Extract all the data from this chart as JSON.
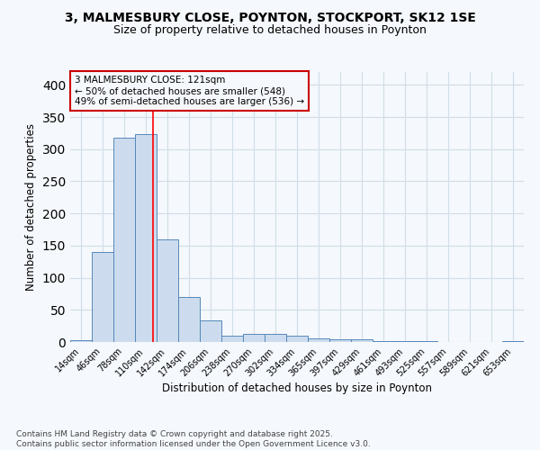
{
  "title": "3, MALMESBURY CLOSE, POYNTON, STOCKPORT, SK12 1SE",
  "subtitle": "Size of property relative to detached houses in Poynton",
  "xlabel": "Distribution of detached houses by size in Poynton",
  "ylabel": "Number of detached properties",
  "bin_labels": [
    "14sqm",
    "46sqm",
    "78sqm",
    "110sqm",
    "142sqm",
    "174sqm",
    "206sqm",
    "238sqm",
    "270sqm",
    "302sqm",
    "334sqm",
    "365sqm",
    "397sqm",
    "429sqm",
    "461sqm",
    "493sqm",
    "525sqm",
    "557sqm",
    "589sqm",
    "621sqm",
    "653sqm"
  ],
  "bar_heights": [
    3,
    140,
    318,
    323,
    160,
    70,
    33,
    10,
    13,
    13,
    10,
    6,
    4,
    4,
    1,
    1,
    1,
    0,
    0,
    0,
    2
  ],
  "bar_color": "#ccdcee",
  "bar_edge_color": "#5588bb",
  "grid_color": "#d0dde8",
  "background_color": "#f5f8fc",
  "red_line_x": 3.34,
  "annotation_text_line1": "3 MALMESBURY CLOSE: 121sqm",
  "annotation_text_line2": "← 50% of detached houses are smaller (548)",
  "annotation_text_line3": "49% of semi-detached houses are larger (536) →",
  "annotation_box_color": "#cc0000",
  "ylim": [
    0,
    420
  ],
  "yticks": [
    0,
    50,
    100,
    150,
    200,
    250,
    300,
    350,
    400
  ],
  "footnote_line1": "Contains HM Land Registry data © Crown copyright and database right 2025.",
  "footnote_line2": "Contains public sector information licensed under the Open Government Licence v3.0."
}
